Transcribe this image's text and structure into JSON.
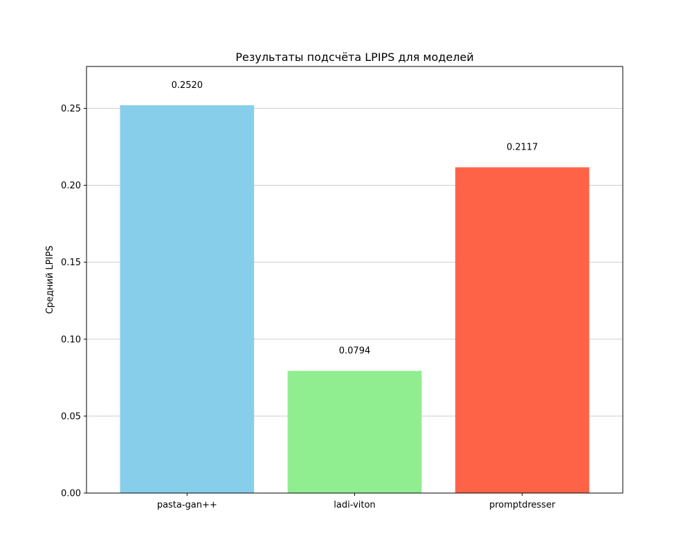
{
  "chart_data": {
    "type": "bar",
    "title": "Результаты подсчёта LPIPS для моделей",
    "xlabel": "",
    "ylabel": "Средний LPIPS",
    "categories": [
      "pasta-gan++",
      "ladi-viton",
      "promptdresser"
    ],
    "values": [
      0.252,
      0.0794,
      0.2117
    ],
    "data_labels": [
      "0.2520",
      "0.0794",
      "0.2117"
    ],
    "colors": [
      "#87ceeb",
      "#90ee90",
      "#ff6347"
    ],
    "ylim": [
      0,
      0.2772
    ],
    "yticks": [
      0.0,
      0.05,
      0.1,
      0.15,
      0.2,
      0.25
    ],
    "ytick_labels": [
      "0.00",
      "0.05",
      "0.10",
      "0.15",
      "0.20",
      "0.25"
    ],
    "grid": "y",
    "grid_color": "#cccccc",
    "legend": "none"
  }
}
